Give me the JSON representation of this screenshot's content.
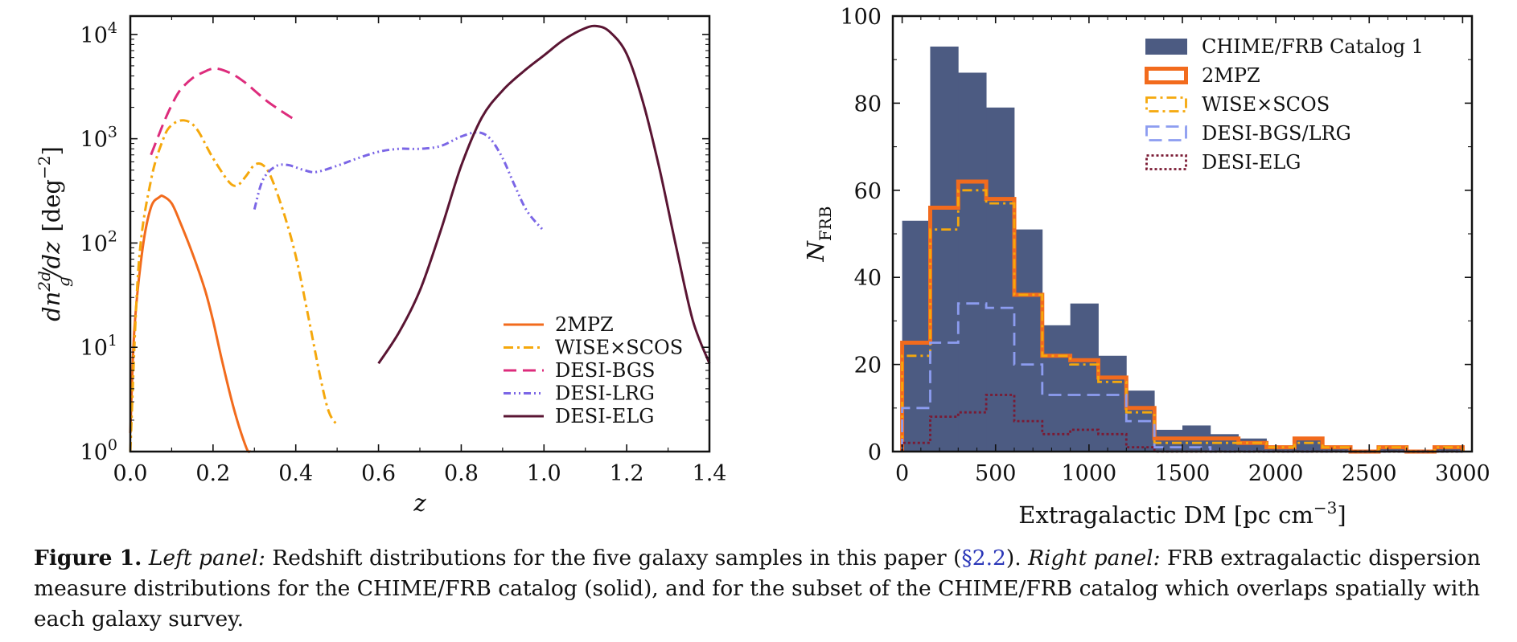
{
  "chart_data": [
    {
      "type": "line",
      "xlabel": "z",
      "ylabel": "dn_g^{2d}/dz  [deg^{-2}]",
      "xlim": [
        0.0,
        1.4
      ],
      "ylim": [
        1,
        15000
      ],
      "yscale": "log",
      "x_ticks": [
        "0.0",
        "0.2",
        "0.4",
        "0.6",
        "0.8",
        "1.0",
        "1.2",
        "1.4"
      ],
      "y_ticks": [
        {
          "base": "10",
          "exp": "0"
        },
        {
          "base": "10",
          "exp": "1"
        },
        {
          "base": "10",
          "exp": "2"
        },
        {
          "base": "10",
          "exp": "3"
        },
        {
          "base": "10",
          "exp": "4"
        }
      ],
      "legend_position": "lower-right",
      "series": [
        {
          "name": "2MPZ",
          "color": "#f26b1d",
          "style": "solid",
          "x": [
            0.0,
            0.01,
            0.03,
            0.05,
            0.07,
            0.08,
            0.1,
            0.12,
            0.15,
            0.18,
            0.2,
            0.22,
            0.25,
            0.28,
            0.29
          ],
          "y": [
            1.5,
            15,
            90,
            220,
            275,
            280,
            240,
            160,
            80,
            36,
            18,
            8,
            2.6,
            1.1,
            1
          ]
        },
        {
          "name": "WISE×SCOS",
          "color": "#f5a80c",
          "style": "dashdot",
          "x": [
            0.0,
            0.02,
            0.05,
            0.08,
            0.1,
            0.13,
            0.16,
            0.2,
            0.24,
            0.26,
            0.28,
            0.3,
            0.32,
            0.34,
            0.37,
            0.4,
            0.43,
            0.46,
            0.48,
            0.5
          ],
          "y": [
            1,
            60,
            400,
            1000,
            1350,
            1500,
            1250,
            650,
            380,
            360,
            440,
            560,
            560,
            430,
            200,
            75,
            20,
            5,
            2.4,
            1.8
          ]
        },
        {
          "name": "DESI-BGS",
          "color": "#dd2c7c",
          "style": "dashed",
          "x": [
            0.05,
            0.08,
            0.1,
            0.12,
            0.15,
            0.18,
            0.2,
            0.22,
            0.25,
            0.28,
            0.3,
            0.33,
            0.36,
            0.4
          ],
          "y": [
            700,
            1400,
            2100,
            2900,
            3800,
            4400,
            4700,
            4600,
            4100,
            3400,
            2900,
            2300,
            1900,
            1500
          ]
        },
        {
          "name": "DESI-LRG",
          "color": "#7b66e6",
          "style": "dashdotdot",
          "x": [
            0.3,
            0.32,
            0.35,
            0.38,
            0.42,
            0.45,
            0.5,
            0.55,
            0.6,
            0.65,
            0.7,
            0.75,
            0.8,
            0.84,
            0.87,
            0.9,
            0.93,
            0.96,
            1.0
          ],
          "y": [
            210,
            400,
            540,
            560,
            500,
            480,
            550,
            650,
            750,
            800,
            800,
            850,
            1050,
            1150,
            1000,
            650,
            350,
            200,
            130
          ]
        },
        {
          "name": "DESI-ELG",
          "color": "#5a1533",
          "style": "solid",
          "x": [
            0.6,
            0.65,
            0.7,
            0.75,
            0.8,
            0.85,
            0.9,
            0.95,
            1.0,
            1.05,
            1.1,
            1.13,
            1.16,
            1.2,
            1.24,
            1.28,
            1.32,
            1.36,
            1.4
          ],
          "y": [
            7,
            14,
            35,
            130,
            550,
            1600,
            2900,
            4400,
            6300,
            9000,
            11500,
            12000,
            10500,
            6500,
            2200,
            500,
            90,
            18,
            7
          ]
        }
      ]
    },
    {
      "type": "bar",
      "xlabel": "Extragalactic DM  [pc cm^{-3}]",
      "ylabel": "N_FRB",
      "xlim": [
        -50,
        3050
      ],
      "ylim": [
        0,
        100
      ],
      "x_ticks": [
        "0",
        "500",
        "1000",
        "1500",
        "2000",
        "2500",
        "3000"
      ],
      "y_ticks": [
        "0",
        "20",
        "40",
        "60",
        "80",
        "100"
      ],
      "legend_position": "top-right",
      "bin_edges": [
        0,
        150,
        300,
        450,
        600,
        750,
        900,
        1050,
        1200,
        1350,
        1500,
        1650,
        1800,
        1950,
        2100,
        2250,
        2400,
        2550,
        2700,
        2850,
        3000
      ],
      "series": [
        {
          "name": "CHIME/FRB Catalog 1",
          "color": "#4c5b82",
          "style": "filled",
          "values": [
            53,
            93,
            87,
            79,
            51,
            29,
            34,
            22,
            14,
            5,
            6,
            4,
            3,
            1,
            3,
            1,
            0,
            1,
            0,
            1
          ]
        },
        {
          "name": "2MPZ",
          "color": "#f26b1d",
          "style": "step-solid",
          "values": [
            25,
            56,
            62,
            58,
            36,
            22,
            21,
            17,
            10,
            3,
            3,
            3,
            2,
            1,
            3,
            1,
            0,
            1,
            0,
            1
          ]
        },
        {
          "name": "WISE×SCOS",
          "color": "#f5a80c",
          "style": "step-dashdot",
          "values": [
            22,
            51,
            60,
            57,
            36,
            22,
            20,
            16,
            9,
            2,
            2,
            2,
            2,
            1,
            2,
            1,
            0,
            1,
            0,
            1
          ]
        },
        {
          "name": "DESI-BGS/LRG",
          "color": "#8c9cf0",
          "style": "step-dashed",
          "values": [
            10,
            25,
            34,
            33,
            20,
            13,
            13,
            13,
            7,
            1,
            1,
            0,
            0,
            0,
            0,
            0,
            0,
            0,
            0,
            0
          ]
        },
        {
          "name": "DESI-ELG",
          "color": "#7a1a33",
          "style": "step-dotted",
          "values": [
            2,
            8,
            9,
            13,
            7,
            4,
            5,
            4,
            1,
            0,
            0,
            0,
            0,
            0,
            0,
            0,
            0,
            0,
            0,
            0
          ]
        }
      ]
    }
  ],
  "caption": {
    "label": "Figure 1.",
    "left_panel_label": "Left panel:",
    "left_text_a": "Redshift distributions for the five galaxy samples in this paper (",
    "section_ref": "§2.2",
    "left_text_b": ").",
    "right_panel_label": "Right panel:",
    "right_text": "FRB extragalactic dispersion measure distributions for the CHIME/FRB catalog (solid), and for the subset of the CHIME/FRB catalog which overlaps spatially with each galaxy survey."
  }
}
